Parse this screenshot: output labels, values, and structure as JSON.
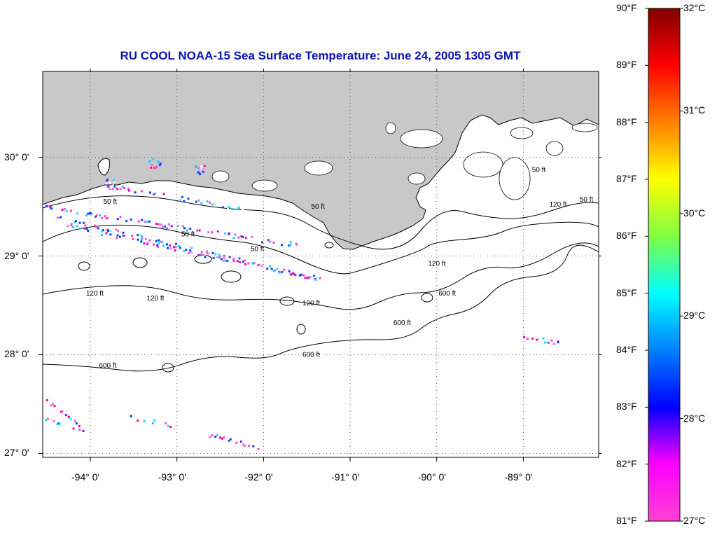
{
  "title": "RU COOL  NOAA-15  Sea Surface Temperature:  June 24, 2005 1305 GMT",
  "map": {
    "lon_range": [
      -94.55,
      -88.13
    ],
    "lat_range": [
      26.96,
      30.87
    ],
    "lon_ticks": [
      {
        "value": -94,
        "label": "-94° 0'"
      },
      {
        "value": -93,
        "label": "-93° 0'"
      },
      {
        "value": -92,
        "label": "-92° 0'"
      },
      {
        "value": -91,
        "label": "-91° 0'"
      },
      {
        "value": -90,
        "label": "-90° 0'"
      },
      {
        "value": -89,
        "label": "-89° 0'"
      }
    ],
    "lat_ticks": [
      {
        "value": 30,
        "label": "30° 0'"
      },
      {
        "value": 29,
        "label": "29° 0'"
      },
      {
        "value": 28,
        "label": "28° 0'"
      },
      {
        "value": 27,
        "label": "27° 0'"
      }
    ],
    "grid": true,
    "colors": {
      "land": "#c8c8c8",
      "ocean": "#ffffff",
      "contour": "#000000",
      "grid": "#555555"
    },
    "contour_labels": [
      {
        "text": "50 ft",
        "lon": -93.85,
        "lat": 29.53
      },
      {
        "text": "50 ft",
        "lon": -91.45,
        "lat": 29.48
      },
      {
        "text": "50 ft",
        "lon": -92.15,
        "lat": 29.05
      },
      {
        "text": "50 ft",
        "lon": -92.95,
        "lat": 29.2
      },
      {
        "text": "120 ft",
        "lon": -93.35,
        "lat": 28.55
      },
      {
        "text": "120 ft",
        "lon": -94.05,
        "lat": 28.6
      },
      {
        "text": "120 ft",
        "lon": -91.55,
        "lat": 28.5
      },
      {
        "text": "120 ft",
        "lon": -90.1,
        "lat": 28.9
      },
      {
        "text": "600 ft",
        "lon": -93.9,
        "lat": 27.87
      },
      {
        "text": "600 ft",
        "lon": -91.55,
        "lat": 27.98
      },
      {
        "text": "600 ft",
        "lon": -90.5,
        "lat": 28.3
      },
      {
        "text": "600 ft",
        "lon": -89.98,
        "lat": 28.6
      },
      {
        "text": "50 ft",
        "lon": -88.9,
        "lat": 29.85
      },
      {
        "text": "120 ft",
        "lon": -88.7,
        "lat": 29.5
      },
      {
        "text": "50 ft",
        "lon": -88.35,
        "lat": 29.55
      }
    ]
  },
  "colorbar": {
    "f_labels": [
      "90°F",
      "89°F",
      "88°F",
      "87°F",
      "86°F",
      "85°F",
      "84°F",
      "83°F",
      "82°F",
      "81°F"
    ],
    "c_labels": [
      "32°C",
      "31°C",
      "30°C",
      "29°C",
      "28°C",
      "27°C"
    ],
    "f_range": [
      81,
      90
    ],
    "c_range": [
      27,
      32
    ],
    "stops": [
      "#800000",
      "#ff0000",
      "#ff8000",
      "#ffff00",
      "#80ff40",
      "#00ffff",
      "#0080ff",
      "#0000ff",
      "#ff00ff",
      "#ff40d0"
    ]
  }
}
